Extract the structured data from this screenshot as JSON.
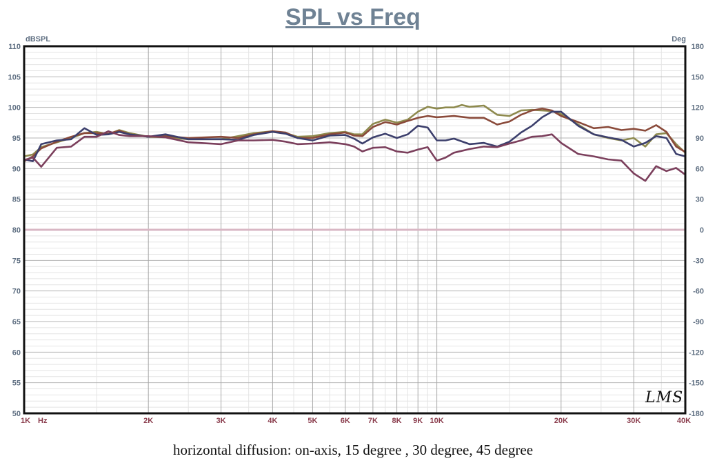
{
  "chart_data": {
    "type": "line",
    "title": "SPL vs Freq",
    "ylabel": "dBSPL",
    "y2label": "Deg",
    "xscale": "log",
    "xlim": [
      1000,
      40000
    ],
    "ylim": [
      50,
      110
    ],
    "y2lim": [
      -180,
      180
    ],
    "grid": true,
    "x_ticks": [
      {
        "value": 1000,
        "label": "1K"
      },
      {
        "value": 2000,
        "label": "2K"
      },
      {
        "value": 3000,
        "label": "3K"
      },
      {
        "value": 4000,
        "label": "4K"
      },
      {
        "value": 5000,
        "label": "5K"
      },
      {
        "value": 6000,
        "label": "6K"
      },
      {
        "value": 7000,
        "label": "7K"
      },
      {
        "value": 8000,
        "label": "8K"
      },
      {
        "value": 9000,
        "label": "9K"
      },
      {
        "value": 10000,
        "label": "10K"
      },
      {
        "value": 20000,
        "label": "20K"
      },
      {
        "value": 30000,
        "label": "30K"
      },
      {
        "value": 40000,
        "label": "40K"
      }
    ],
    "x_unit_label": "Hz",
    "y_ticks": [
      "110",
      "105",
      "100",
      "95",
      "90",
      "85",
      "80",
      "75",
      "70",
      "65",
      "60",
      "55",
      "50"
    ],
    "y2_ticks": [
      "180",
      "150",
      "120",
      "90",
      "60",
      "30",
      "0",
      "-30",
      "-60",
      "-90",
      "-120",
      "-150",
      "-180"
    ],
    "series": [
      {
        "color": "#8e8a4e",
        "points": [
          [
            1000,
            92
          ],
          [
            1050,
            92.3
          ],
          [
            1100,
            93.5
          ],
          [
            1200,
            94.3
          ],
          [
            1300,
            95
          ],
          [
            1400,
            95.8
          ],
          [
            1500,
            96
          ],
          [
            1600,
            95.6
          ],
          [
            1700,
            96.3
          ],
          [
            1800,
            95.8
          ],
          [
            2000,
            95.2
          ],
          [
            2200,
            95.1
          ],
          [
            2500,
            94.8
          ],
          [
            3000,
            94.8
          ],
          [
            3300,
            95.3
          ],
          [
            3600,
            95.8
          ],
          [
            4000,
            96.1
          ],
          [
            4300,
            95.8
          ],
          [
            4600,
            95.2
          ],
          [
            5000,
            95.3
          ],
          [
            5500,
            95.8
          ],
          [
            6000,
            96
          ],
          [
            6300,
            95.6
          ],
          [
            6600,
            95.6
          ],
          [
            7000,
            97.3
          ],
          [
            7500,
            98
          ],
          [
            8000,
            97.5
          ],
          [
            8500,
            98
          ],
          [
            9000,
            99.3
          ],
          [
            9500,
            100.1
          ],
          [
            10000,
            99.8
          ],
          [
            10500,
            100
          ],
          [
            11000,
            100
          ],
          [
            11500,
            100.4
          ],
          [
            12000,
            100.1
          ],
          [
            13000,
            100.3
          ],
          [
            14000,
            98.8
          ],
          [
            15000,
            98.6
          ],
          [
            16000,
            99.5
          ],
          [
            17000,
            99.6
          ],
          [
            18000,
            99.5
          ],
          [
            19000,
            99.4
          ],
          [
            20000,
            98.9
          ],
          [
            22000,
            97.2
          ],
          [
            24000,
            95.6
          ],
          [
            26000,
            95
          ],
          [
            28000,
            94.6
          ],
          [
            30000,
            95
          ],
          [
            32000,
            93.6
          ],
          [
            34000,
            95.6
          ],
          [
            36000,
            95.8
          ],
          [
            38000,
            94
          ],
          [
            40000,
            92.6
          ]
        ]
      },
      {
        "color": "#8a4a3a",
        "points": [
          [
            1000,
            91.2
          ],
          [
            1050,
            92
          ],
          [
            1100,
            93.3
          ],
          [
            1200,
            94.4
          ],
          [
            1300,
            95.2
          ],
          [
            1400,
            95.8
          ],
          [
            1500,
            95.8
          ],
          [
            1600,
            95.7
          ],
          [
            1700,
            96.2
          ],
          [
            1800,
            95.6
          ],
          [
            2000,
            95.2
          ],
          [
            2200,
            95.3
          ],
          [
            2500,
            95
          ],
          [
            3000,
            95.2
          ],
          [
            3300,
            95
          ],
          [
            3600,
            95.6
          ],
          [
            4000,
            96.1
          ],
          [
            4300,
            95.9
          ],
          [
            4600,
            95
          ],
          [
            5000,
            95
          ],
          [
            5500,
            95.6
          ],
          [
            6000,
            95.9
          ],
          [
            6300,
            95.4
          ],
          [
            6600,
            95.3
          ],
          [
            7000,
            96.8
          ],
          [
            7500,
            97.6
          ],
          [
            8000,
            97.2
          ],
          [
            8500,
            97.8
          ],
          [
            9000,
            98.3
          ],
          [
            9500,
            98.6
          ],
          [
            10000,
            98.4
          ],
          [
            11000,
            98.6
          ],
          [
            12000,
            98.3
          ],
          [
            13000,
            98.3
          ],
          [
            14000,
            97.2
          ],
          [
            15000,
            97.7
          ],
          [
            16000,
            98.8
          ],
          [
            17000,
            99.5
          ],
          [
            18000,
            99.8
          ],
          [
            19000,
            99.5
          ],
          [
            20000,
            98.6
          ],
          [
            22000,
            97.6
          ],
          [
            24000,
            96.6
          ],
          [
            26000,
            96.8
          ],
          [
            28000,
            96.3
          ],
          [
            30000,
            96.5
          ],
          [
            32000,
            96.2
          ],
          [
            34000,
            97.1
          ],
          [
            36000,
            96
          ],
          [
            38000,
            93.6
          ],
          [
            40000,
            92.7
          ]
        ]
      },
      {
        "color": "#3c3f6c",
        "points": [
          [
            1000,
            91.5
          ],
          [
            1050,
            91.2
          ],
          [
            1100,
            94
          ],
          [
            1200,
            94.6
          ],
          [
            1300,
            94.8
          ],
          [
            1400,
            96.6
          ],
          [
            1500,
            95.5
          ],
          [
            1600,
            95.6
          ],
          [
            1700,
            96
          ],
          [
            1800,
            95.6
          ],
          [
            2000,
            95.2
          ],
          [
            2200,
            95.6
          ],
          [
            2500,
            94.8
          ],
          [
            3000,
            94.8
          ],
          [
            3300,
            94.7
          ],
          [
            3600,
            95.5
          ],
          [
            4000,
            96
          ],
          [
            4300,
            95.7
          ],
          [
            4600,
            95
          ],
          [
            5000,
            94.6
          ],
          [
            5500,
            95.4
          ],
          [
            6000,
            95.5
          ],
          [
            6300,
            94.9
          ],
          [
            6600,
            94.1
          ],
          [
            7000,
            95.1
          ],
          [
            7500,
            95.7
          ],
          [
            8000,
            95
          ],
          [
            8500,
            95.6
          ],
          [
            9000,
            97
          ],
          [
            9500,
            96.7
          ],
          [
            10000,
            94.6
          ],
          [
            10500,
            94.6
          ],
          [
            11000,
            94.9
          ],
          [
            12000,
            94
          ],
          [
            13000,
            94.2
          ],
          [
            14000,
            93.6
          ],
          [
            15000,
            94.4
          ],
          [
            16000,
            95.9
          ],
          [
            17000,
            97
          ],
          [
            18000,
            98.4
          ],
          [
            19000,
            99.3
          ],
          [
            20000,
            99.3
          ],
          [
            22000,
            97
          ],
          [
            24000,
            95.6
          ],
          [
            26000,
            95.1
          ],
          [
            28000,
            94.7
          ],
          [
            30000,
            93.6
          ],
          [
            32000,
            94.2
          ],
          [
            34000,
            95.3
          ],
          [
            36000,
            95
          ],
          [
            38000,
            92.4
          ],
          [
            40000,
            92
          ]
        ]
      },
      {
        "color": "#7b3f5c",
        "points": [
          [
            1000,
            91.4
          ],
          [
            1050,
            91.8
          ],
          [
            1100,
            90.3
          ],
          [
            1200,
            93.4
          ],
          [
            1300,
            93.6
          ],
          [
            1400,
            95.2
          ],
          [
            1500,
            95.2
          ],
          [
            1600,
            96.1
          ],
          [
            1700,
            95.5
          ],
          [
            1800,
            95.3
          ],
          [
            2000,
            95.3
          ],
          [
            2200,
            95.1
          ],
          [
            2500,
            94.3
          ],
          [
            3000,
            94
          ],
          [
            3300,
            94.6
          ],
          [
            3600,
            94.6
          ],
          [
            4000,
            94.7
          ],
          [
            4300,
            94.4
          ],
          [
            4600,
            94
          ],
          [
            5000,
            94.1
          ],
          [
            5500,
            94.3
          ],
          [
            6000,
            94
          ],
          [
            6300,
            93.6
          ],
          [
            6600,
            92.8
          ],
          [
            7000,
            93.4
          ],
          [
            7500,
            93.5
          ],
          [
            8000,
            92.8
          ],
          [
            8500,
            92.6
          ],
          [
            9000,
            93.1
          ],
          [
            9500,
            93.5
          ],
          [
            10000,
            91.3
          ],
          [
            10500,
            91.8
          ],
          [
            11000,
            92.6
          ],
          [
            12000,
            93.2
          ],
          [
            13000,
            93.6
          ],
          [
            14000,
            93.5
          ],
          [
            15000,
            94.1
          ],
          [
            16000,
            94.6
          ],
          [
            17000,
            95.2
          ],
          [
            18000,
            95.3
          ],
          [
            19000,
            95.6
          ],
          [
            20000,
            94.2
          ],
          [
            22000,
            92.4
          ],
          [
            24000,
            92
          ],
          [
            26000,
            91.5
          ],
          [
            28000,
            91.3
          ],
          [
            30000,
            89.2
          ],
          [
            32000,
            88
          ],
          [
            34000,
            90.4
          ],
          [
            36000,
            89.6
          ],
          [
            38000,
            90.1
          ],
          [
            40000,
            89
          ]
        ]
      }
    ]
  },
  "signature": "LMS",
  "caption": "horizontal diffusion: on-axis, 15 degree , 30 degree, 45 degree"
}
